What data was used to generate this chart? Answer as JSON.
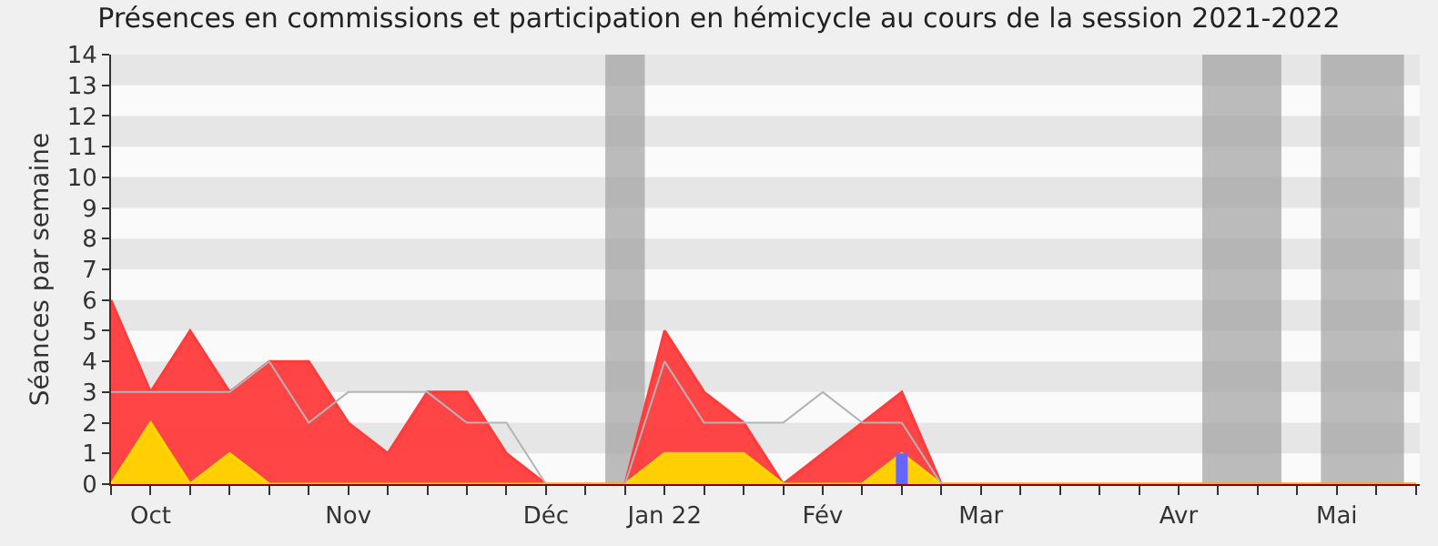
{
  "chart_data": {
    "type": "area",
    "title": "Présences en commissions et participation en hémicycle au cours de la session 2021-2022",
    "ylabel": "Séances par semaine",
    "categories": [
      null,
      "Oct",
      null,
      null,
      null,
      null,
      "Nov",
      null,
      null,
      null,
      null,
      "Déc",
      null,
      null,
      "Jan 22",
      null,
      null,
      null,
      "Fév",
      null,
      null,
      null,
      "Mar",
      null,
      null,
      null,
      null,
      "Avr",
      null,
      null,
      null,
      "Mai",
      null,
      null
    ],
    "ylim": [
      0,
      14
    ],
    "yticks": [
      0,
      1,
      2,
      3,
      4,
      5,
      6,
      7,
      8,
      9,
      10,
      11,
      12,
      13,
      14
    ],
    "series": [
      {
        "type": "line",
        "color": "#b4b4b4",
        "values": [
          3,
          3,
          3,
          3,
          4,
          2,
          3,
          3,
          3,
          2,
          2,
          0,
          0,
          0,
          4,
          2,
          2,
          2,
          3,
          2,
          2,
          0,
          0,
          0,
          0,
          0,
          0,
          0,
          0,
          0,
          0,
          0,
          0,
          0
        ]
      },
      {
        "color": "#ff3b3b",
        "values": [
          6,
          3,
          5,
          3,
          4,
          4,
          2,
          1,
          3,
          3,
          1,
          0,
          0,
          0,
          5,
          3,
          2,
          0,
          1,
          2,
          3,
          0,
          0,
          0,
          0,
          0,
          0,
          0,
          0,
          0,
          0,
          0,
          0,
          0
        ]
      },
      {
        "color": "#ffd700",
        "values": [
          0,
          2,
          0,
          1,
          0,
          0,
          0,
          0,
          0,
          0,
          0,
          0,
          0,
          0,
          1,
          1,
          1,
          0,
          0,
          0,
          1,
          0,
          0,
          0,
          0,
          0,
          0,
          0,
          0,
          0,
          0,
          0,
          0,
          0
        ]
      },
      {
        "type": "bar",
        "color": "#6666ff",
        "values": [
          0,
          0,
          0,
          0,
          0,
          0,
          0,
          0,
          0,
          0,
          0,
          0,
          0,
          0,
          0,
          0,
          0,
          0,
          0,
          0,
          1,
          0,
          0,
          0,
          0,
          0,
          0,
          0,
          0,
          0,
          0,
          0,
          0,
          0
        ]
      }
    ],
    "bands": [
      {
        "axis": "y",
        "from": 1,
        "to": 2,
        "color": "#e6e6e6"
      },
      {
        "axis": "y",
        "from": 3,
        "to": 4,
        "color": "#e6e6e6"
      },
      {
        "axis": "y",
        "from": 5,
        "to": 6,
        "color": "#e6e6e6"
      },
      {
        "axis": "y",
        "from": 7,
        "to": 8,
        "color": "#e6e6e6"
      },
      {
        "axis": "y",
        "from": 9,
        "to": 10,
        "color": "#e6e6e6"
      },
      {
        "axis": "y",
        "from": 11,
        "to": 12,
        "color": "#e6e6e6"
      },
      {
        "axis": "y",
        "from": 13,
        "to": 14,
        "color": "#e6e6e6"
      }
    ],
    "legend": false
  }
}
